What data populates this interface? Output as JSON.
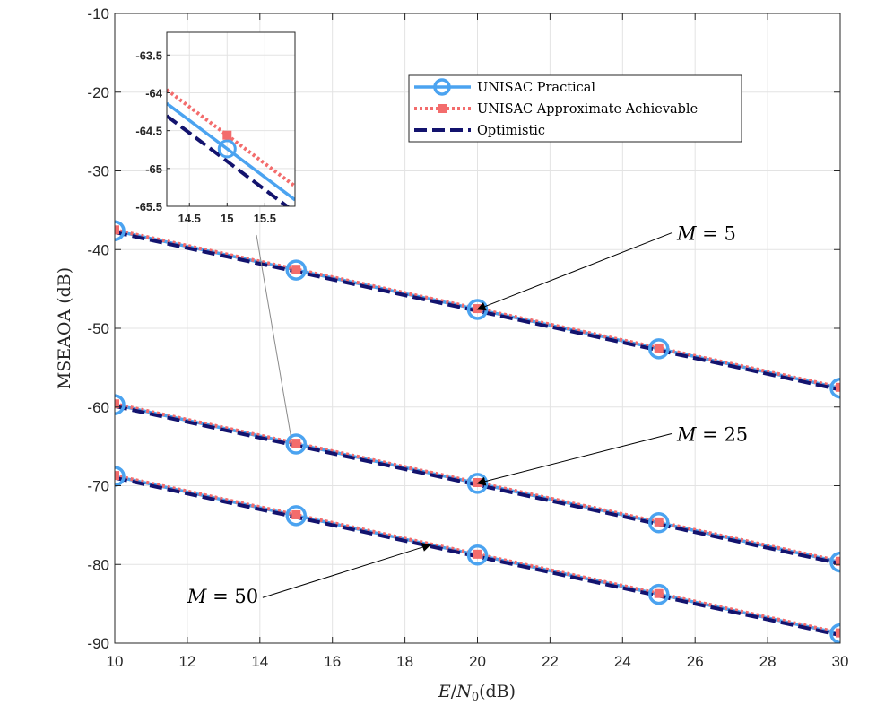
{
  "chart_data": {
    "type": "line",
    "xlabel": "E/N0(dB)",
    "ylabel": "MSEAOA (dB)",
    "xlim": [
      10,
      30
    ],
    "ylim": [
      -90,
      -10
    ],
    "xticks": [
      "10",
      "12",
      "14",
      "16",
      "18",
      "20",
      "22",
      "24",
      "26",
      "28",
      "30"
    ],
    "yticks": [
      "-10",
      "-20",
      "-30",
      "-40",
      "-50",
      "-60",
      "-70",
      "-80",
      "-90"
    ],
    "grid": true,
    "legend_position": "top-right",
    "legend": [
      "UNISAC Practical",
      "UNISAC Approximate Achievable",
      "Optimistic"
    ],
    "colors": {
      "practical": "#4ba3f0",
      "approximate": "#f36c6c",
      "optimistic": "#13136e"
    },
    "x": [
      10,
      15,
      20,
      25,
      30
    ],
    "groups": [
      {
        "label": "M = 5",
        "series": [
          {
            "name": "UNISAC Practical",
            "values": [
              -37.6,
              -42.6,
              -47.6,
              -52.6,
              -57.6
            ]
          },
          {
            "name": "UNISAC Approximate Achievable",
            "values": [
              -37.5,
              -42.5,
              -47.5,
              -52.5,
              -57.5
            ]
          },
          {
            "name": "Optimistic",
            "values": [
              -37.8,
              -42.8,
              -47.8,
              -52.8,
              -57.8
            ]
          }
        ]
      },
      {
        "label": "M = 25",
        "series": [
          {
            "name": "UNISAC Practical",
            "values": [
              -59.7,
              -64.7,
              -69.7,
              -74.7,
              -79.7
            ]
          },
          {
            "name": "UNISAC Approximate Achievable",
            "values": [
              -59.6,
              -64.6,
              -69.6,
              -74.6,
              -79.6
            ]
          },
          {
            "name": "Optimistic",
            "values": [
              -59.9,
              -64.9,
              -69.9,
              -74.9,
              -79.9
            ]
          }
        ]
      },
      {
        "label": "M = 50",
        "series": [
          {
            "name": "UNISAC Practical",
            "values": [
              -68.8,
              -73.8,
              -78.8,
              -83.8,
              -88.8
            ]
          },
          {
            "name": "UNISAC Approximate Achievable",
            "values": [
              -68.7,
              -73.7,
              -78.7,
              -83.7,
              -88.7
            ]
          },
          {
            "name": "Optimistic",
            "values": [
              -69.0,
              -74.0,
              -79.0,
              -84.0,
              -89.0
            ]
          }
        ]
      }
    ],
    "inset": {
      "xlim": [
        14.2,
        15.9
      ],
      "ylim": [
        -65.5,
        -63.2
      ],
      "xticks": [
        "14.5",
        "15",
        "15.5"
      ],
      "yticks": [
        "-63.5",
        "-64",
        "-64.5",
        "-65",
        "-65.5"
      ],
      "series": [
        {
          "name": "UNISAC Practical",
          "x": [
            14.2,
            15,
            15.9
          ],
          "values": [
            -64.14,
            -64.74,
            -65.415
          ]
        },
        {
          "name": "UNISAC Approximate Achievable",
          "x": [
            14.2,
            15,
            15.9
          ],
          "values": [
            -63.96,
            -64.56,
            -65.235
          ]
        },
        {
          "name": "Optimistic",
          "x": [
            14.2,
            15,
            15.9
          ],
          "values": [
            -64.305,
            -64.905,
            -65.58
          ]
        }
      ]
    },
    "annotations": [
      {
        "label_var": "M",
        "label_value": "5",
        "text_at": [
          25.5,
          -38.8
        ],
        "arrow_to": [
          20,
          -47.6
        ]
      },
      {
        "label_var": "M",
        "label_value": "25",
        "text_at": [
          25.5,
          -64.3
        ],
        "arrow_to": [
          20,
          -69.7
        ]
      },
      {
        "label_var": "M",
        "label_value": "50",
        "text_at": [
          12.0,
          -84.9
        ],
        "arrow_to": [
          18.7,
          -77.5
        ]
      }
    ]
  }
}
